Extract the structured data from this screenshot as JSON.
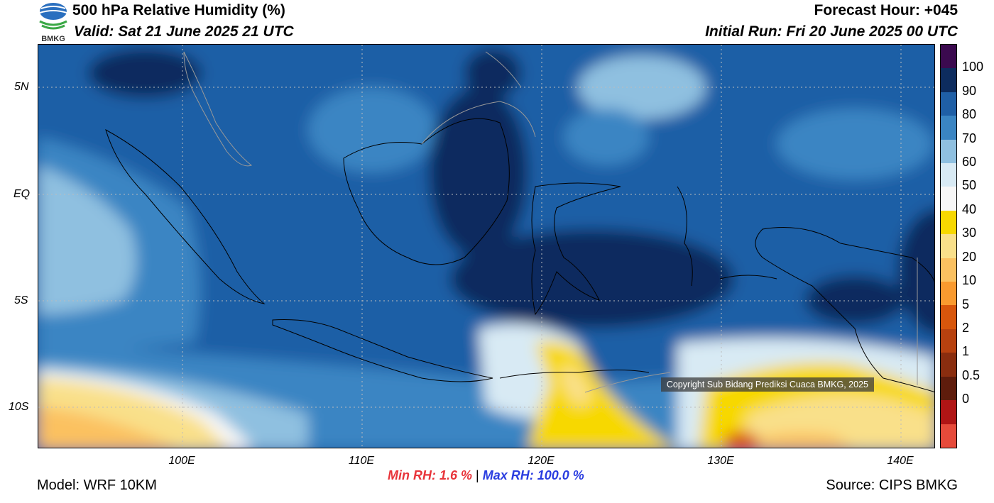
{
  "header": {
    "title": "500 hPa Relative Humidity (%)",
    "valid": "Valid: Sat 21 June 2025 21 UTC",
    "forecast_hour": "Forecast Hour: +045",
    "initial_run": "Initial Run: Fri 20 June 2025 00 UTC",
    "logo_text": "BMKG"
  },
  "map": {
    "lat_labels": [
      "5N",
      "EQ",
      "5S",
      "10S"
    ],
    "lon_labels": [
      "100E",
      "110E",
      "120E",
      "130E",
      "140E"
    ],
    "copyright": "Copyright Sub Bidang Prediksi Cuaca BMKG, 2025"
  },
  "colorbar": {
    "labels": [
      "100",
      "90",
      "80",
      "70",
      "60",
      "50",
      "40",
      "30",
      "20",
      "10",
      "5",
      "2",
      "1",
      "0.5",
      "0"
    ],
    "colors": [
      "#3b0a4f",
      "#0d2c5e",
      "#1f5fa6",
      "#3a85c3",
      "#8fc0e0",
      "#d8eaf4",
      "#f7f7f7",
      "#f7d800",
      "#f9e08a",
      "#fbc160",
      "#f99a2f",
      "#d8560c",
      "#b8410f",
      "#8a2d0f",
      "#5e1c0c",
      "#b01515",
      "#e64a3a"
    ]
  },
  "stats": {
    "min_label": "Min RH:   1.6 %",
    "separator": "|",
    "max_label": "Max RH: 100.0 %"
  },
  "footer": {
    "model": "Model: WRF 10KM",
    "source": "Source: CIPS BMKG"
  }
}
